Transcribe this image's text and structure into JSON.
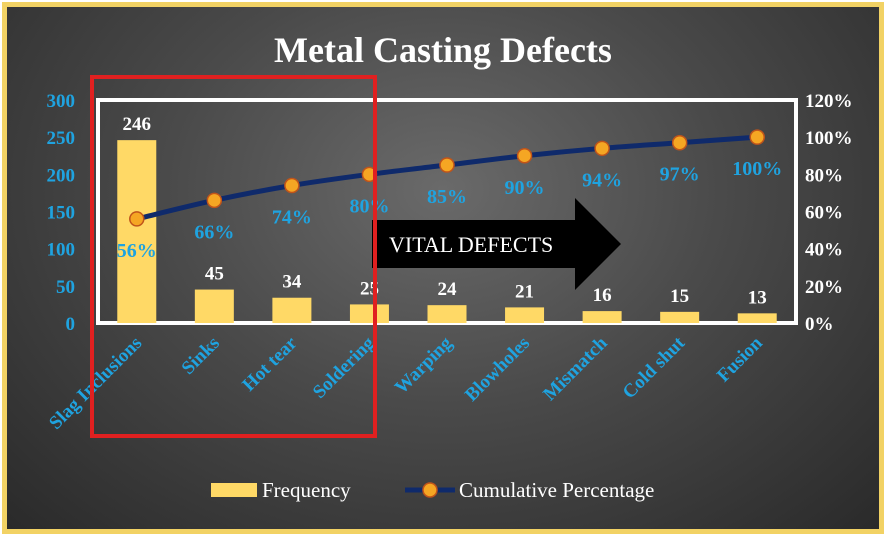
{
  "chart_data": {
    "type": "bar",
    "title": "Metal Casting Defects",
    "categories": [
      "Slag Inclusions",
      "Sinks",
      "Hot tear",
      "Soldering",
      "Warping",
      "Blowholes",
      "Mismatch",
      "Cold shut",
      "Fusion"
    ],
    "series": [
      {
        "name": "Frequency",
        "type": "bar",
        "axis": "left",
        "values": [
          246,
          45,
          34,
          25,
          24,
          21,
          16,
          15,
          13
        ],
        "labels": [
          "246",
          "45",
          "34",
          "25",
          "24",
          "21",
          "16",
          "15",
          "13"
        ],
        "color": "#ffd966"
      },
      {
        "name": "Cumulative Percentage",
        "type": "line",
        "axis": "right",
        "values": [
          56,
          66,
          74,
          80,
          85,
          90,
          94,
          97,
          100
        ],
        "labels": [
          "56%",
          "66%",
          "74%",
          "80%",
          "85%",
          "90%",
          "94%",
          "97%",
          "100%"
        ],
        "line_color": "#0f2a6b",
        "marker_color": "#f5a623"
      }
    ],
    "y_left": {
      "ylim": [
        0,
        300
      ],
      "ticks": [
        0,
        50,
        100,
        150,
        200,
        250,
        300
      ],
      "tick_labels": [
        "0",
        "50",
        "100",
        "150",
        "200",
        "250",
        "300"
      ]
    },
    "y_right": {
      "ylim": [
        0,
        120
      ],
      "ticks": [
        0,
        20,
        40,
        60,
        80,
        100,
        120
      ],
      "tick_labels": [
        "0%",
        "20%",
        "40%",
        "60%",
        "80%",
        "100%",
        "120%"
      ]
    },
    "grid": false,
    "legend": {
      "position": "bottom",
      "entries": [
        "Frequency",
        "Cumulative Percentage"
      ]
    },
    "annotation": {
      "text": "VITAL DEFECTS",
      "highlight_categories": [
        "Slag Inclusions",
        "Sinks",
        "Hot tear",
        "Soldering"
      ],
      "highlight_color": "#e02020"
    }
  }
}
